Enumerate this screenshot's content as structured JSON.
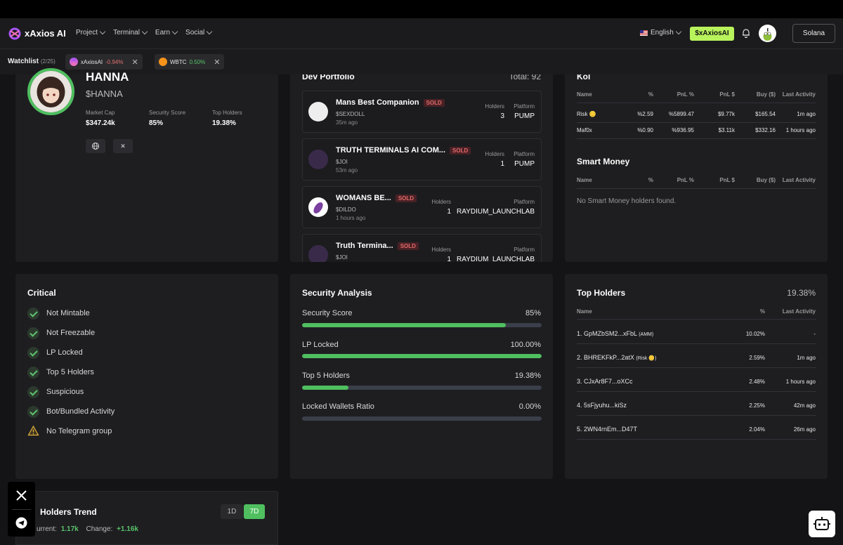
{
  "nav": {
    "brand": "xAxios AI",
    "menu": [
      "Project",
      "Terminal",
      "Earn",
      "Social"
    ],
    "language": "English",
    "token_button": "$xAxiosAI",
    "network": "Solana"
  },
  "watchlist": {
    "label": "Watchlist",
    "count": "(2/25)",
    "items": [
      {
        "name": "xAxiosAI",
        "change": "-0.94%"
      },
      {
        "name": "WBTC",
        "change": "0.50%"
      }
    ]
  },
  "token": {
    "name": "HANNA",
    "symbol": "$HANNA",
    "stats": [
      {
        "label": "Market Cap",
        "value": "$347.24k"
      },
      {
        "label": "Security Score",
        "value": "85%"
      },
      {
        "label": "Top Holders",
        "value": "19.38%"
      }
    ]
  },
  "dev_portfolio": {
    "title": "Dev Portfolio",
    "total": "Total: 92",
    "sold_label": "SOLD",
    "holders_label": "Holders",
    "platform_label": "Platform",
    "items": [
      {
        "name": "Mans Best Companion",
        "ticker": "$SEXDOLL",
        "time": "35m ago",
        "holders": "3",
        "platform": "PUMP"
      },
      {
        "name": "TRUTH TERMINALS AI COM...",
        "ticker": "$JOI",
        "time": "53m ago",
        "holders": "1",
        "platform": "PUMP"
      },
      {
        "name": "WOMANS BE...",
        "ticker": "$DILDO",
        "time": "1 hours ago",
        "holders": "1",
        "platform": "RAYDIUM_LAUNCHLAB"
      },
      {
        "name": "Truth Termina...",
        "ticker": "$JOI",
        "time": "",
        "holders": "1",
        "platform": "RAYDIUM_LAUNCHLAB"
      }
    ]
  },
  "kol": {
    "title": "Kol",
    "columns": [
      "Name",
      "%",
      "PnL %",
      "PnL $",
      "Buy ($)",
      "Last Activity"
    ],
    "rows": [
      {
        "name": "Risk 🪙",
        "pct": "%2.59",
        "pnl_pct": "%5899.47",
        "pnl_usd": "$9.77k",
        "buy": "$165.54",
        "last": "1m ago"
      },
      {
        "name": "Maf0x",
        "pct": "%0.90",
        "pnl_pct": "%936.95",
        "pnl_usd": "$3.11k",
        "buy": "$332.16",
        "last": "1 hours ago"
      }
    ]
  },
  "smart_money": {
    "title": "Smart Money",
    "columns": [
      "Name",
      "%",
      "PnL %",
      "PnL $",
      "Buy ($)",
      "Last Activity"
    ],
    "empty": "No Smart Money holders found."
  },
  "critical": {
    "title": "Critical",
    "items": [
      {
        "label": "Not Mintable",
        "status": "ok"
      },
      {
        "label": "Not Freezable",
        "status": "ok"
      },
      {
        "label": "LP Locked",
        "status": "ok"
      },
      {
        "label": "Top 5 Holders",
        "status": "ok"
      },
      {
        "label": "Suspicious",
        "status": "ok"
      },
      {
        "label": "Bot/Bundled Activity",
        "status": "ok"
      },
      {
        "label": "No Telegram group",
        "status": "warn"
      }
    ]
  },
  "security": {
    "title": "Security Analysis",
    "items": [
      {
        "label": "Security Score",
        "value": "85%",
        "fraction": 0.85
      },
      {
        "label": "LP Locked",
        "value": "100.00%",
        "fraction": 1.0
      },
      {
        "label": "Top 5 Holders",
        "value": "19.38%",
        "fraction": 0.1938
      },
      {
        "label": "Locked Wallets Ratio",
        "value": "0.00%",
        "fraction": 0.0
      }
    ]
  },
  "top_holders": {
    "title": "Top Holders",
    "total": "19.38%",
    "columns": [
      "Name",
      "%",
      "Last Activity"
    ],
    "rows": [
      {
        "name": "1. GpMZbSM2...xFbL",
        "tag": "(AMM)",
        "pct": "10.02%",
        "last": "-"
      },
      {
        "name": "2. BHREKFkP...2atX",
        "tag": "(Risk 🪙)",
        "pct": "2.59%",
        "last": "1m ago"
      },
      {
        "name": "3. CJxAr8F7...oXCc",
        "tag": "",
        "pct": "2.48%",
        "last": "1 hours ago"
      },
      {
        "name": "4. 5sFjyuhu...kiSz",
        "tag": "",
        "pct": "2.25%",
        "last": "42m ago"
      },
      {
        "name": "5. 2WN4rnEm...D47T",
        "tag": "",
        "pct": "2.04%",
        "last": "26m ago"
      }
    ]
  },
  "holders_trend": {
    "title": "Holders Trend",
    "tabs": [
      "1D",
      "7D"
    ],
    "current_label": "urrent:",
    "current": "1.17k",
    "change_label": "Change:",
    "change": "+1.16k"
  },
  "colors": {
    "accent": "#b8f35c",
    "positive": "#59c36a",
    "negative": "#e07070",
    "bar_fill": "#4fbf5f"
  }
}
